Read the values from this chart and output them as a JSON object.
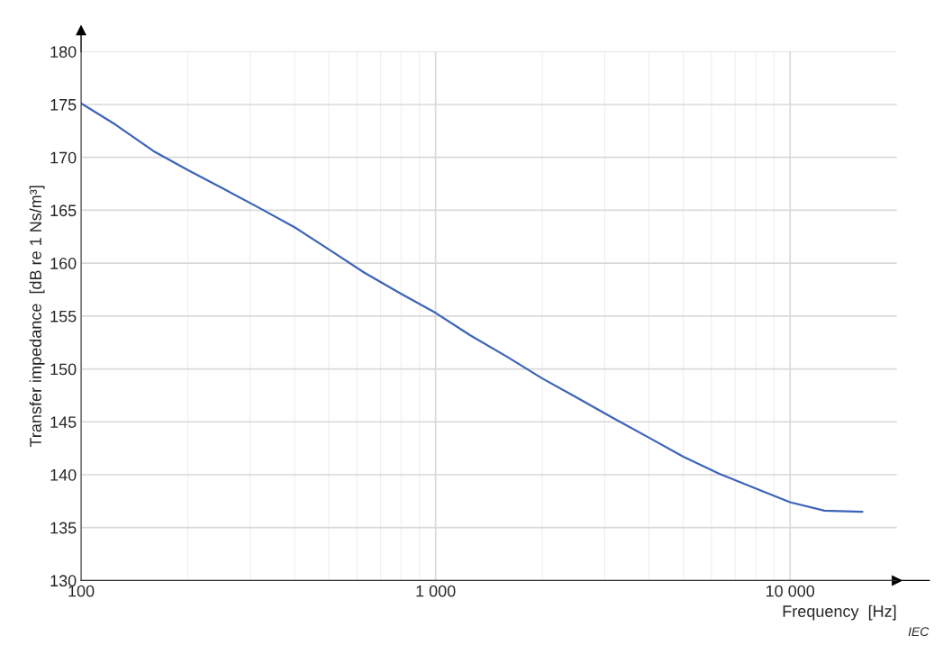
{
  "chart_data": {
    "type": "line",
    "xlabel": "Frequency  [Hz]",
    "ylabel": "Transfer impedance  [dB re 1 Ns/m³]",
    "annotations": [
      "IEC"
    ],
    "x": [
      100,
      125,
      160,
      200,
      250,
      315,
      400,
      500,
      630,
      800,
      1000,
      1250,
      1600,
      2000,
      2500,
      3150,
      4000,
      5000,
      6300,
      8000,
      10000,
      12500,
      16000
    ],
    "series": [
      {
        "color": "#3d64b8",
        "values": [
          175.1,
          173.1,
          170.6,
          168.8,
          167.1,
          165.3,
          163.4,
          161.3,
          159.1,
          157.1,
          155.3,
          153.2,
          151.1,
          149.1,
          147.3,
          145.4,
          143.5,
          141.7,
          140.1,
          138.7,
          137.4,
          136.6,
          136.5
        ]
      }
    ],
    "log": "x",
    "xlim": [
      100,
      20000
    ],
    "xticks": [
      100,
      {
        "value": 1000,
        "label": "1 000"
      },
      {
        "value": 10000,
        "label": "10 000"
      }
    ],
    "ylim": [
      130,
      180
    ],
    "yticks": [
      130,
      135,
      140,
      145,
      150,
      155,
      160,
      165,
      170,
      175,
      180
    ],
    "grid": true,
    "line_style": "solid",
    "marker": "none"
  }
}
